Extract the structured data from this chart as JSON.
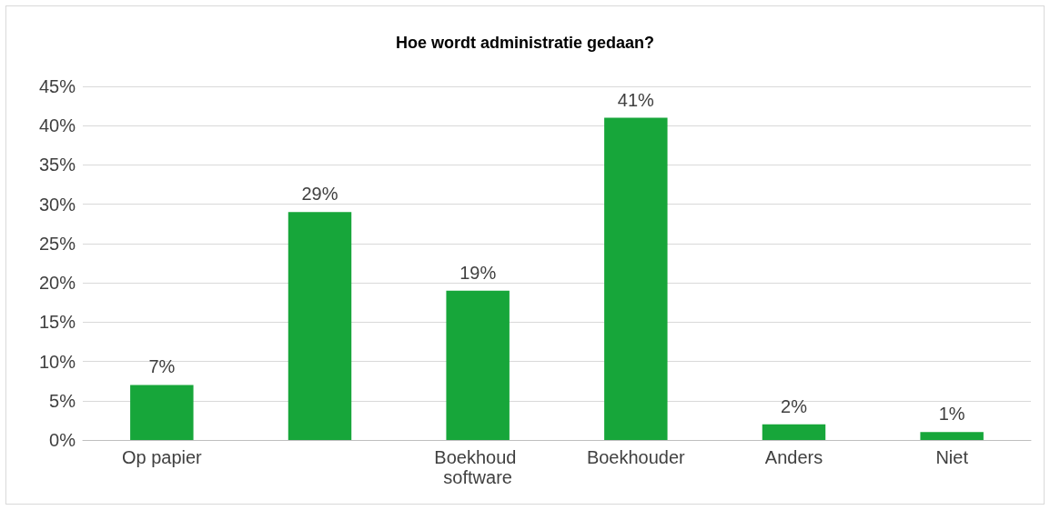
{
  "chart_data": {
    "type": "bar",
    "title": "Hoe wordt administratie gedaan?",
    "categories": [
      "Op papier",
      null,
      "Boekhoud software",
      "Boekhouder",
      "Anders",
      "Niet"
    ],
    "values": [
      7,
      29,
      19,
      41,
      2,
      1
    ],
    "value_labels": [
      "7%",
      "29%",
      "19%",
      "41%",
      "2%",
      "1%"
    ],
    "color": "#17a63a",
    "ylim": [
      0,
      45
    ],
    "yticks": [
      {
        "value": 0,
        "label": "0%"
      },
      {
        "value": 5,
        "label": "5%"
      },
      {
        "value": 10,
        "label": "10%"
      },
      {
        "value": 15,
        "label": "15%"
      },
      {
        "value": 20,
        "label": "20%"
      },
      {
        "value": 25,
        "label": "25%"
      },
      {
        "value": 30,
        "label": "30%"
      },
      {
        "value": 35,
        "label": "35%"
      },
      {
        "value": 40,
        "label": "40%"
      },
      {
        "value": 45,
        "label": "45%"
      }
    ],
    "grid": "y"
  }
}
